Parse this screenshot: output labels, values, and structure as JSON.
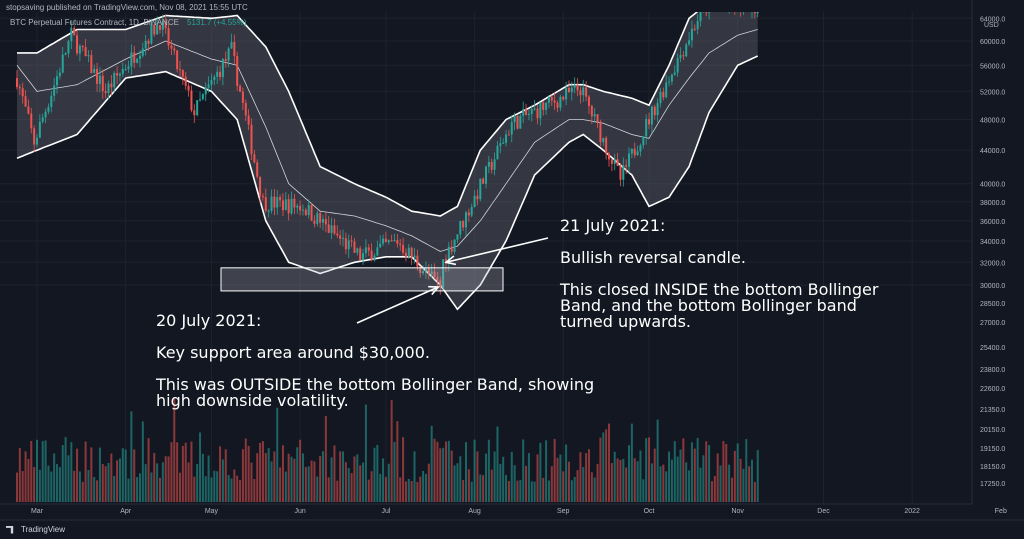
{
  "header": {
    "published": "stopsaving published on TradingView.com, Nov 08, 2021 15:55 UTC",
    "symbol": "BTC Perpetual Futures Contract, 1D, BINANCE",
    "value_fragment": "5131.7 (+4.55%)"
  },
  "watermark": {
    "text": "TradingView"
  },
  "annotations": {
    "right": [
      "21 July 2021:",
      "",
      "Bullish reversal candle.",
      "",
      "This closed INSIDE the bottom Bollinger",
      "Band, and the bottom Bollinger band",
      "turned upwards."
    ],
    "left": [
      "20 July 2021:",
      "",
      "Key support area around $30,000.",
      "",
      "This was OUTSIDE the bottom Bollinger Band, showing",
      "high downside volatility."
    ]
  },
  "colors": {
    "background": "#131722",
    "bull": "#26a69a",
    "bear": "#ef5350",
    "band_fill": "#5d606b",
    "annotation": "#ffffff"
  },
  "chart_data": {
    "type": "candlestick",
    "price_scale": "log",
    "currency": "USD",
    "y_ticks": [
      64000,
      60000,
      56000,
      52000,
      48000,
      44000,
      40000,
      38000,
      36000,
      34000,
      32000,
      30000,
      28500,
      27000,
      25400,
      23800,
      22600,
      21350,
      20150,
      19150,
      18150,
      17250
    ],
    "x_ticks": [
      "Mar",
      "Apr",
      "May",
      "Jun",
      "Jul",
      "Aug",
      "Sep",
      "Oct",
      "Nov",
      "Dec",
      "2022",
      "Feb"
    ],
    "support_zone": [
      29500,
      31500
    ],
    "bollinger_anchors": [
      {
        "date": "2021-02-22",
        "mid": 56000,
        "upper": 58000,
        "lower": 43000
      },
      {
        "date": "2021-03-01",
        "mid": 52000,
        "upper": 58000,
        "lower": 44000
      },
      {
        "date": "2021-03-15",
        "mid": 53000,
        "upper": 62000,
        "lower": 46000
      },
      {
        "date": "2021-04-01",
        "mid": 57000,
        "upper": 62000,
        "lower": 54000
      },
      {
        "date": "2021-04-15",
        "mid": 60000,
        "upper": 64500,
        "lower": 55000
      },
      {
        "date": "2021-05-01",
        "mid": 57000,
        "upper": 64000,
        "lower": 52000
      },
      {
        "date": "2021-05-10",
        "mid": 56000,
        "upper": 64500,
        "lower": 48000
      },
      {
        "date": "2021-05-20",
        "mid": 47000,
        "upper": 59000,
        "lower": 36000
      },
      {
        "date": "2021-05-28",
        "mid": 40000,
        "upper": 52000,
        "lower": 32000
      },
      {
        "date": "2021-06-08",
        "mid": 37000,
        "upper": 42000,
        "lower": 31000
      },
      {
        "date": "2021-06-20",
        "mid": 36500,
        "upper": 40000,
        "lower": 32000
      },
      {
        "date": "2021-07-01",
        "mid": 35500,
        "upper": 38500,
        "lower": 32500
      },
      {
        "date": "2021-07-10",
        "mid": 34500,
        "upper": 37000,
        "lower": 32500
      },
      {
        "date": "2021-07-20",
        "mid": 33000,
        "upper": 36500,
        "lower": 30000
      },
      {
        "date": "2021-07-26",
        "mid": 33500,
        "upper": 37500,
        "lower": 28000
      },
      {
        "date": "2021-08-03",
        "mid": 36000,
        "upper": 44000,
        "lower": 30000
      },
      {
        "date": "2021-08-12",
        "mid": 40000,
        "upper": 48000,
        "lower": 34000
      },
      {
        "date": "2021-08-22",
        "mid": 45000,
        "upper": 50000,
        "lower": 41000
      },
      {
        "date": "2021-09-03",
        "mid": 48000,
        "upper": 53000,
        "lower": 45000
      },
      {
        "date": "2021-09-08",
        "mid": 48000,
        "upper": 53000,
        "lower": 46000
      },
      {
        "date": "2021-09-15",
        "mid": 47500,
        "upper": 52000,
        "lower": 44000
      },
      {
        "date": "2021-09-25",
        "mid": 46000,
        "upper": 51000,
        "lower": 41000
      },
      {
        "date": "2021-10-01",
        "mid": 45500,
        "upper": 50000,
        "lower": 37500
      },
      {
        "date": "2021-10-08",
        "mid": 50000,
        "upper": 56000,
        "lower": 38500
      },
      {
        "date": "2021-10-15",
        "mid": 54000,
        "upper": 64000,
        "lower": 42000
      },
      {
        "date": "2021-10-22",
        "mid": 58000,
        "upper": 67000,
        "lower": 49000
      },
      {
        "date": "2021-11-01",
        "mid": 61000,
        "upper": 67000,
        "lower": 56000
      },
      {
        "date": "2021-11-08",
        "mid": 62000,
        "upper": 67000,
        "lower": 57500
      }
    ],
    "price_anchors": [
      {
        "date": "2021-02-22",
        "close": 54000
      },
      {
        "date": "2021-02-28",
        "close": 45000
      },
      {
        "date": "2021-03-13",
        "close": 61000
      },
      {
        "date": "2021-03-25",
        "close": 52000
      },
      {
        "date": "2021-04-13",
        "close": 63500
      },
      {
        "date": "2021-04-25",
        "close": 49000
      },
      {
        "date": "2021-05-08",
        "close": 58500
      },
      {
        "date": "2021-05-19",
        "close": 38000
      },
      {
        "date": "2021-06-02",
        "close": 37500
      },
      {
        "date": "2021-06-22",
        "close": 32500
      },
      {
        "date": "2021-07-05",
        "close": 34000
      },
      {
        "date": "2021-07-20",
        "close": 29800
      },
      {
        "date": "2021-07-21",
        "close": 32100
      },
      {
        "date": "2021-08-14",
        "close": 47500
      },
      {
        "date": "2021-09-07",
        "close": 52500
      },
      {
        "date": "2021-09-21",
        "close": 40500
      },
      {
        "date": "2021-10-05",
        "close": 51500
      },
      {
        "date": "2021-10-20",
        "close": 66000
      },
      {
        "date": "2021-11-08",
        "close": 66500
      }
    ],
    "callouts": [
      {
        "date": "2021-07-21",
        "price": 32000,
        "label": "21 July 2021"
      },
      {
        "date": "2021-07-20",
        "price": 30000,
        "label": "20 July 2021"
      }
    ]
  }
}
